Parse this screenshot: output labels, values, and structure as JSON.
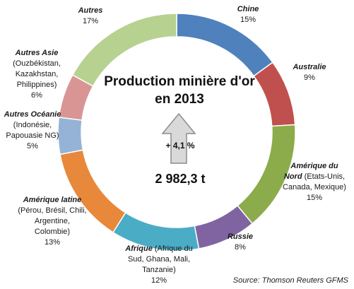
{
  "chart_data": {
    "type": "donut",
    "title_line1": "Production minière d'or",
    "title_line2": "en 2013",
    "center_change": "+ 4,1 %",
    "center_total": "2 982,3 t",
    "source": "Source: Thomson Reuters GFMS",
    "slices": [
      {
        "name": "Chine",
        "detail": "",
        "label": "15%",
        "value": 15,
        "color": "#4f81bd"
      },
      {
        "name": "Australie",
        "detail": "",
        "label": "9%",
        "value": 9,
        "color": "#c0504d"
      },
      {
        "name": "Amérique du Nord",
        "detail": "(Etats-Unis, Canada, Mexique)",
        "label": "15%",
        "value": 15,
        "color": "#8cab4b"
      },
      {
        "name": "Russie",
        "detail": "",
        "label": "8%",
        "value": 8,
        "color": "#8064a2"
      },
      {
        "name": "Afrique",
        "detail": "(Afrique du Sud, Ghana, Mali, Tanzanie)",
        "label": "12%",
        "value": 12,
        "color": "#4bacc6"
      },
      {
        "name": "Amérique latine",
        "detail": "(Pérou, Brésil, Chili, Argentine, Colombie)",
        "label": "13%",
        "value": 13,
        "color": "#e8883a"
      },
      {
        "name": "Autres Océanie",
        "detail": "(Indonésie, Papouasie NG)",
        "label": "5%",
        "value": 5,
        "color": "#95b3d7"
      },
      {
        "name": "Autres Asie",
        "detail": "(Ouzbékistan, Kazakhstan, Philippines)",
        "label": "6%",
        "value": 6,
        "color": "#d99594"
      },
      {
        "name": "Autres",
        "detail": "",
        "label": "17%",
        "value": 17,
        "color": "#b7d190"
      }
    ]
  }
}
